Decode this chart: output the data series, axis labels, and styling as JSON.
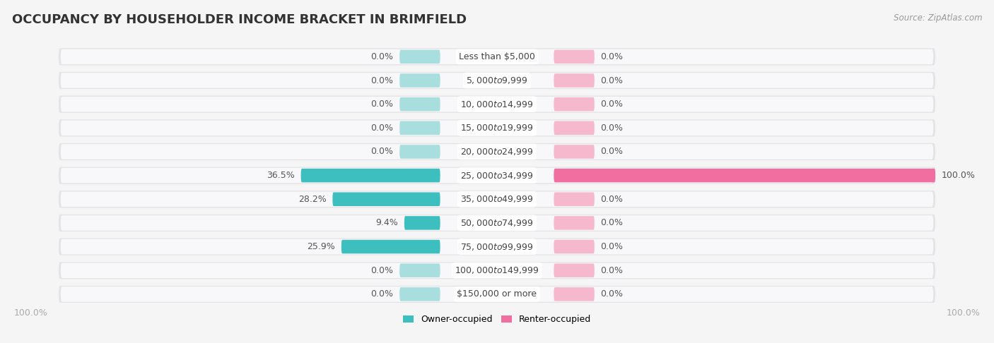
{
  "title": "OCCUPANCY BY HOUSEHOLDER INCOME BRACKET IN BRIMFIELD",
  "source": "Source: ZipAtlas.com",
  "categories": [
    "Less than $5,000",
    "$5,000 to $9,999",
    "$10,000 to $14,999",
    "$15,000 to $19,999",
    "$20,000 to $24,999",
    "$25,000 to $34,999",
    "$35,000 to $49,999",
    "$50,000 to $74,999",
    "$75,000 to $99,999",
    "$100,000 to $149,999",
    "$150,000 or more"
  ],
  "owner_values": [
    0.0,
    0.0,
    0.0,
    0.0,
    0.0,
    36.5,
    28.2,
    9.4,
    25.9,
    0.0,
    0.0
  ],
  "renter_values": [
    0.0,
    0.0,
    0.0,
    0.0,
    0.0,
    100.0,
    0.0,
    0.0,
    0.0,
    0.0,
    0.0
  ],
  "owner_color": "#3dbfbf",
  "renter_color": "#f06fa0",
  "owner_color_light": "#a8dede",
  "renter_color_light": "#f5b8cc",
  "row_bg_color": "#e4e4e6",
  "title_fontsize": 13,
  "label_fontsize": 9,
  "source_fontsize": 8.5,
  "legend_fontsize": 9,
  "figsize": [
    14.06,
    4.86
  ]
}
